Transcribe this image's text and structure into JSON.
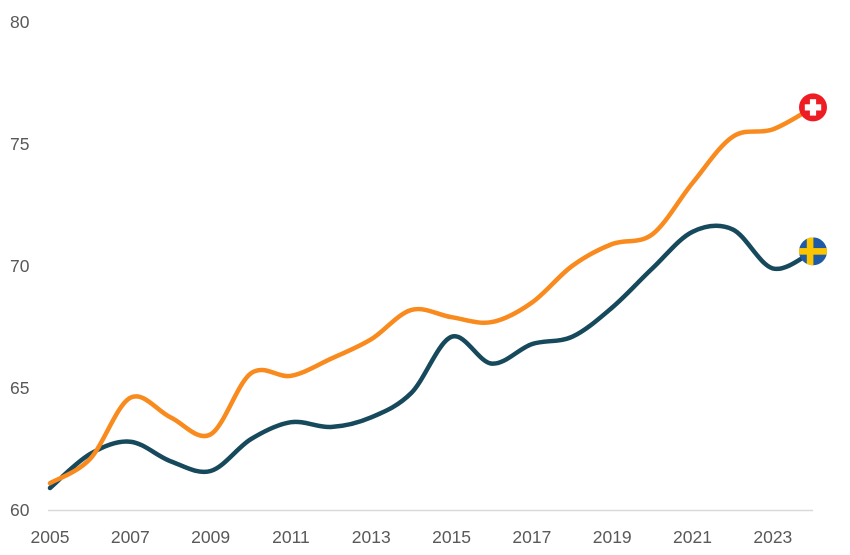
{
  "chart_data": {
    "type": "line",
    "title": "",
    "xlabel": "",
    "ylabel": "",
    "x": [
      2005,
      2006,
      2007,
      2008,
      2009,
      2010,
      2011,
      2012,
      2013,
      2014,
      2015,
      2016,
      2017,
      2018,
      2019,
      2020,
      2021,
      2022,
      2023,
      2024
    ],
    "series": [
      {
        "name": "Switzerland",
        "color": "#F98A1D",
        "end_marker": "swiss-flag",
        "end_value": 76.5,
        "values": [
          61.1,
          62.1,
          64.6,
          63.8,
          63.1,
          65.6,
          65.5,
          66.2,
          67.0,
          68.2,
          67.9,
          67.7,
          68.5,
          70.0,
          70.9,
          71.3,
          73.4,
          75.3,
          75.6,
          76.5
        ]
      },
      {
        "name": "Sweden",
        "color": "#17495C",
        "end_marker": "swedish-flag",
        "end_value": 70.6,
        "values": [
          60.9,
          62.3,
          62.8,
          62.0,
          61.6,
          62.9,
          63.6,
          63.4,
          63.8,
          64.8,
          67.1,
          66.0,
          66.8,
          67.1,
          68.3,
          69.9,
          71.4,
          71.5,
          69.9,
          70.6
        ]
      }
    ],
    "xticks": [
      2005,
      2007,
      2009,
      2011,
      2013,
      2015,
      2017,
      2019,
      2021,
      2023
    ],
    "yticks": [
      60,
      65,
      70,
      75,
      80
    ],
    "xlim": [
      2005,
      2024
    ],
    "ylim": [
      60,
      80
    ],
    "grid": false,
    "legend": "flag markers at line ends"
  },
  "axis": {
    "tick_label_color": "#595959",
    "axis_line_color": "#D9D9D9"
  },
  "markers": {
    "swiss_flag": {
      "country": "Switzerland",
      "bg": "#EE1C23",
      "cross": "#FFFFFF"
    },
    "swedish_flag": {
      "country": "Sweden",
      "bg": "#1E5AA5",
      "cross": "#FDC500"
    }
  }
}
